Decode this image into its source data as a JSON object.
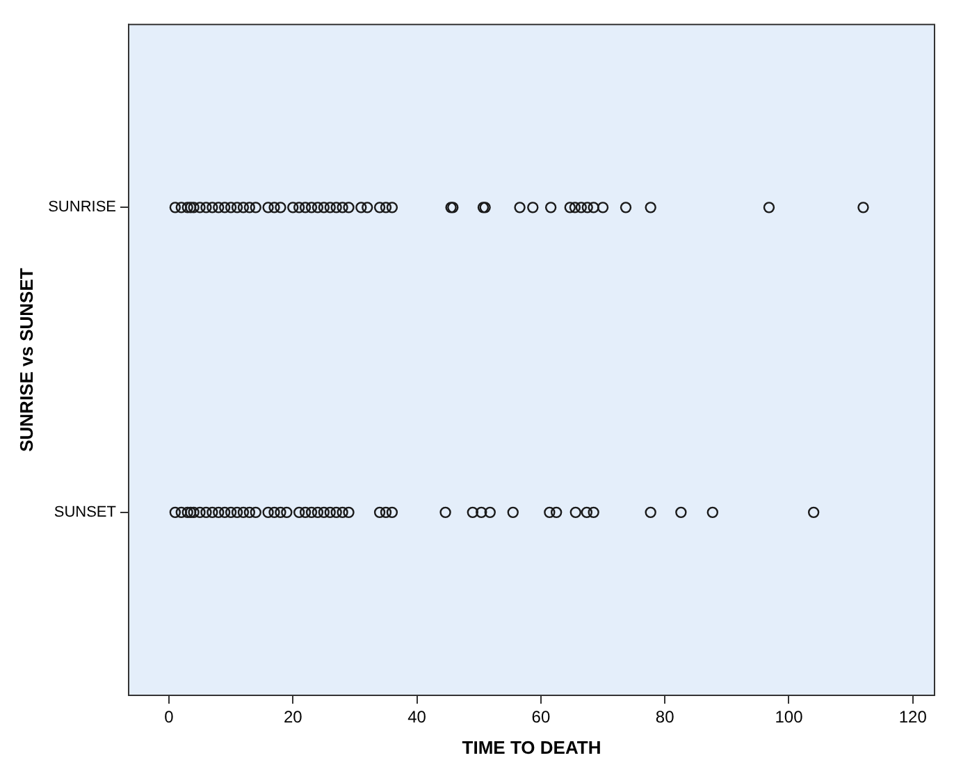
{
  "chart_data": {
    "type": "scatter",
    "xlabel": "TIME TO DEATH",
    "ylabel": "SUNRISE vs SUNSET",
    "categories": [
      "SUNRISE",
      "SUNSET"
    ],
    "orientation": "horizontal",
    "xlim": [
      -6.5,
      123.5
    ],
    "xticks": [
      0,
      20,
      40,
      60,
      80,
      100,
      120
    ],
    "grid": false,
    "legend": false,
    "marker": "circle",
    "series": [
      {
        "color": "#1a1a1a",
        "values": [
          1,
          2,
          3,
          3.5,
          4,
          5,
          6,
          7,
          8,
          9,
          10,
          11,
          12,
          13,
          14,
          16,
          17,
          18,
          20,
          21,
          22,
          23,
          24,
          25,
          26,
          27,
          28,
          29,
          31,
          32,
          34,
          35,
          36,
          45.5,
          45.8,
          50.7,
          51,
          56.6,
          58.7,
          61.6,
          64.7,
          65.5,
          66.5,
          67.5,
          68.5,
          70,
          73.7,
          77.7,
          96.8,
          112
        ],
        "x": [
          "SUNRISE",
          "SUNRISE",
          "SUNRISE",
          "SUNRISE",
          "SUNRISE",
          "SUNRISE",
          "SUNRISE",
          "SUNRISE",
          "SUNRISE",
          "SUNRISE",
          "SUNRISE",
          "SUNRISE",
          "SUNRISE",
          "SUNRISE",
          "SUNRISE",
          "SUNRISE",
          "SUNRISE",
          "SUNRISE",
          "SUNRISE",
          "SUNRISE",
          "SUNRISE",
          "SUNRISE",
          "SUNRISE",
          "SUNRISE",
          "SUNRISE",
          "SUNRISE",
          "SUNRISE",
          "SUNRISE",
          "SUNRISE",
          "SUNRISE",
          "SUNRISE",
          "SUNRISE",
          "SUNRISE",
          "SUNRISE",
          "SUNRISE",
          "SUNRISE",
          "SUNRISE",
          "SUNRISE",
          "SUNRISE",
          "SUNRISE",
          "SUNRISE",
          "SUNRISE",
          "SUNRISE",
          "SUNRISE",
          "SUNRISE",
          "SUNRISE",
          "SUNRISE",
          "SUNRISE",
          "SUNRISE",
          "SUNRISE"
        ]
      },
      {
        "color": "#1a1a1a",
        "values": [
          1,
          2,
          3,
          3.5,
          4,
          5,
          6,
          7,
          8,
          9,
          10,
          11,
          12,
          13,
          14,
          16,
          17,
          18,
          19,
          21,
          22,
          23,
          24,
          25,
          26,
          27,
          28,
          29,
          34,
          35,
          36,
          44.6,
          49,
          50.4,
          51.8,
          55.5,
          61.4,
          62.5,
          65.6,
          67.4,
          68.5,
          77.7,
          82.6,
          87.7,
          104
        ],
        "x": [
          "SUNSET",
          "SUNSET",
          "SUNSET",
          "SUNSET",
          "SUNSET",
          "SUNSET",
          "SUNSET",
          "SUNSET",
          "SUNSET",
          "SUNSET",
          "SUNSET",
          "SUNSET",
          "SUNSET",
          "SUNSET",
          "SUNSET",
          "SUNSET",
          "SUNSET",
          "SUNSET",
          "SUNSET",
          "SUNSET",
          "SUNSET",
          "SUNSET",
          "SUNSET",
          "SUNSET",
          "SUNSET",
          "SUNSET",
          "SUNSET",
          "SUNSET",
          "SUNSET",
          "SUNSET",
          "SUNSET",
          "SUNSET",
          "SUNSET",
          "SUNSET",
          "SUNSET",
          "SUNSET",
          "SUNSET",
          "SUNSET",
          "SUNSET",
          "SUNSET",
          "SUNSET",
          "SUNSET",
          "SUNSET",
          "SUNSET",
          "SUNSET"
        ]
      }
    ]
  }
}
